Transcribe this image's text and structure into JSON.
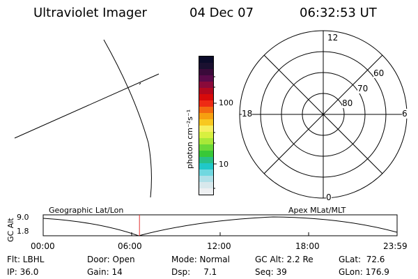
{
  "header": {
    "instrument": "Ultraviolet Imager",
    "date": "04 Dec 07",
    "time": "06:32:53 UT"
  },
  "colorbar": {
    "unit_label": "photon cm⁻²s⁻¹",
    "ticks": [
      "100",
      "10"
    ],
    "colors": [
      "#0b0b2a",
      "#1a1030",
      "#3a0a3a",
      "#5a0a4a",
      "#8a0a3a",
      "#b3081e",
      "#d80a0a",
      "#ee2a14",
      "#f36a10",
      "#f6a010",
      "#f8c820",
      "#f6ef60",
      "#d8f040",
      "#a8e838",
      "#6ad838",
      "#38c838",
      "#28c088",
      "#20c8c8",
      "#70d8e0",
      "#b0e0e8",
      "#d8e8ec",
      "#eef0f2"
    ]
  },
  "polar_plot": {
    "mlt_labels": {
      "top": "12",
      "right": "6",
      "bottom": "0",
      "left": "18"
    },
    "lat_labels": [
      "60",
      "70",
      "80"
    ]
  },
  "timeline": {
    "left_label": "Geographic Lat/Lon",
    "right_label": "Apex MLat/MLT",
    "y_axis_label": "GC Alt",
    "y_ticks": [
      "9.0",
      "1.8"
    ],
    "x_ticks": [
      "00:00",
      "06:00",
      "12:00",
      "18:00",
      "23:59"
    ],
    "current_time_fraction": 0.272,
    "marker_color": "#e03030"
  },
  "status": {
    "row1": {
      "flt": "Flt: LBHL",
      "door": "Door: Open",
      "mode": "Mode: Normal",
      "gcalt": "GC Alt: 2.2 Re",
      "glat": "GLat:  72.6"
    },
    "row2": {
      "ip": "IP: 36.0",
      "gain": "Gain: 14",
      "dsp": "Dsp:     7.1",
      "seq": "Seq: 39",
      "glon": "GLon: 176.9"
    }
  }
}
